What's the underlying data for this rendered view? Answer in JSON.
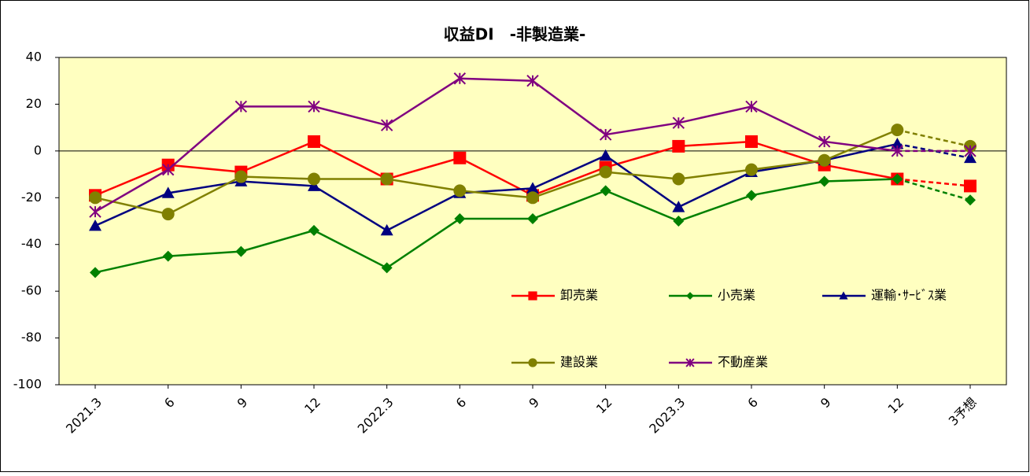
{
  "chart_data": {
    "type": "line",
    "title": "収益DI　-非製造業-",
    "categories": [
      "2021.3",
      "6",
      "9",
      "12",
      "2022.3",
      "6",
      "9",
      "12",
      "2023.3",
      "6",
      "9",
      "12",
      "3予想"
    ],
    "series": [
      {
        "name": "卸売業",
        "color": "#ff0000",
        "marker": "square",
        "values": [
          -19,
          -6,
          -9,
          4,
          -12,
          -3,
          -19,
          -7,
          2,
          4,
          -6,
          -12,
          -15
        ]
      },
      {
        "name": "小売業",
        "color": "#008000",
        "marker": "diamond",
        "values": [
          -52,
          -45,
          -43,
          -34,
          -50,
          -29,
          -29,
          -17,
          -30,
          -19,
          -13,
          -12,
          -21
        ]
      },
      {
        "name": "運輸･ｻｰﾋﾞｽ業",
        "color": "#000080",
        "marker": "triangle",
        "values": [
          -32,
          -18,
          -13,
          -15,
          -34,
          -18,
          -16,
          -2,
          -24,
          -9,
          -4,
          3,
          -3
        ]
      },
      {
        "name": "建設業",
        "color": "#808000",
        "marker": "circle",
        "values": [
          -20,
          -27,
          -11,
          -12,
          -12,
          -17,
          -20,
          -9,
          -12,
          -8,
          -4,
          9,
          2
        ]
      },
      {
        "name": "不動産業",
        "color": "#800080",
        "marker": "x",
        "values": [
          -26,
          -8,
          19,
          19,
          11,
          31,
          30,
          7,
          12,
          19,
          4,
          0,
          0
        ]
      }
    ],
    "ylim": [
      -100,
      40
    ],
    "yticks": [
      -100,
      -80,
      -60,
      -40,
      -20,
      0,
      20,
      40
    ],
    "forecast_dashed": true,
    "grid": false
  }
}
